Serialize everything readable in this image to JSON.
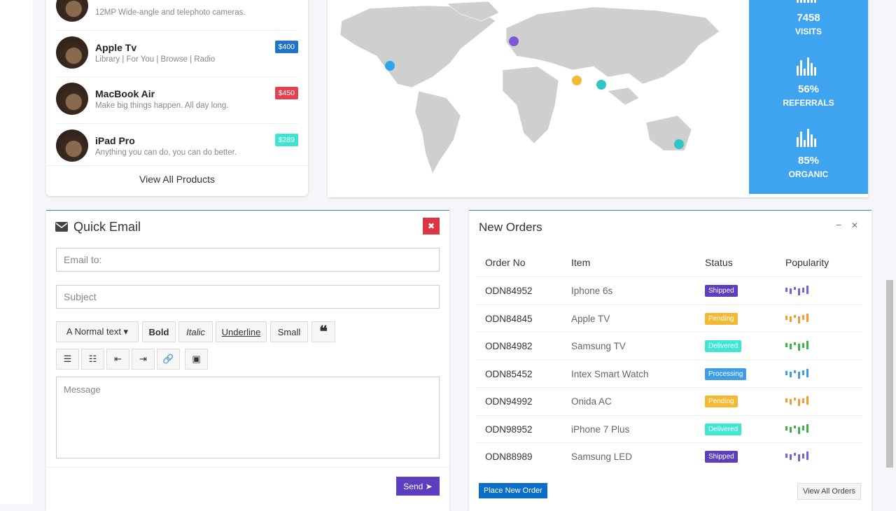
{
  "products": {
    "items": [
      {
        "name": "",
        "description": "12MP Wide-angle and telephoto cameras.",
        "price": ""
      },
      {
        "name": "Apple Tv",
        "description": "Library | For You | Browse | Radio",
        "price": "$400",
        "color": "#1f74c9"
      },
      {
        "name": "MacBook Air",
        "description": "Make big things happen. All day long.",
        "price": "$450",
        "color": "#e0434f"
      },
      {
        "name": "iPad Pro",
        "description": "Anything you can do, you can do better.",
        "price": "$289",
        "color": "#3fe3d3"
      }
    ],
    "view_all": "View All Products"
  },
  "map_stats": [
    {
      "value": "7458",
      "label": "VISITS"
    },
    {
      "value": "56%",
      "label": "REFERRALS"
    },
    {
      "value": "85%",
      "label": "ORGANIC"
    }
  ],
  "quick_email": {
    "title": "Quick Email",
    "email_placeholder": "Email to:",
    "subject_placeholder": "Subject",
    "toolbar": [
      "Normal text",
      "Bold",
      "Italic",
      "Underline",
      "Small"
    ],
    "message_placeholder": "Message",
    "send": "Send"
  },
  "new_orders": {
    "title": "New Orders",
    "columns": [
      "Order No",
      "Item",
      "Status",
      "Popularity"
    ],
    "rows": [
      {
        "order": "ODN84952",
        "item": "Iphone 6s",
        "status": "Shipped",
        "status_color": "#5b3fbf",
        "bar_color": "#7b5fd6"
      },
      {
        "order": "ODN84845",
        "item": "Apple TV",
        "status": "Pending",
        "status_color": "#f5b835",
        "bar_color": "#f39c34"
      },
      {
        "order": "ODN84982",
        "item": "Samsung TV",
        "status": "Delivered",
        "status_color": "#3fe6d2",
        "bar_color": "#3bb54a"
      },
      {
        "order": "ODN85452",
        "item": "Intex Smart Watch",
        "status": "Processing",
        "status_color": "#3d9ee8",
        "bar_color": "#3d9ee8"
      },
      {
        "order": "ODN94992",
        "item": "Onida AC",
        "status": "Pending",
        "status_color": "#f5b835",
        "bar_color": "#f39c34"
      },
      {
        "order": "ODN98952",
        "item": "iPhone 7 Plus",
        "status": "Delivered",
        "status_color": "#3fe6d2",
        "bar_color": "#3bb54a"
      },
      {
        "order": "ODN88989",
        "item": "Samsung LED",
        "status": "Shipped",
        "status_color": "#5b3fbf",
        "bar_color": "#7b5fd6"
      }
    ],
    "place_order": "Place New Order",
    "view_all": "View All Orders"
  }
}
